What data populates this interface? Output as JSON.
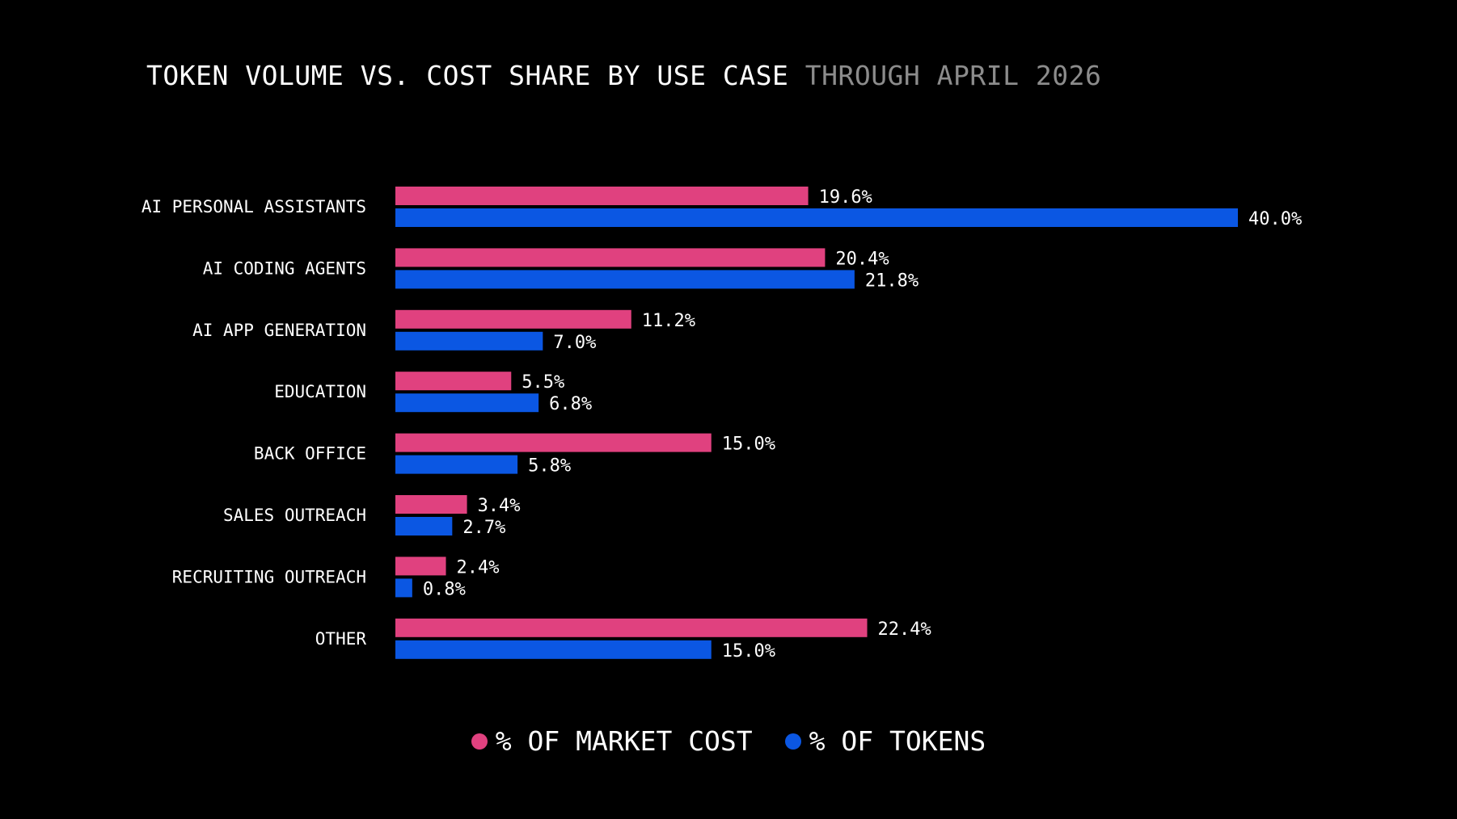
{
  "colors": {
    "background": "#000000",
    "cost": "#e0417f",
    "tokens": "#0b57e3",
    "subtitle": "#8c8c8c"
  },
  "chart_data": {
    "type": "bar",
    "orientation": "horizontal",
    "title": "TOKEN VOLUME VS. COST SHARE BY USE CASE",
    "subtitle": "THROUGH APRIL 2026",
    "categories": [
      "AI PERSONAL ASSISTANTS",
      "AI CODING AGENTS",
      "AI APP GENERATION",
      "EDUCATION",
      "BACK OFFICE",
      "SALES OUTREACH",
      "RECRUITING OUTREACH",
      "OTHER"
    ],
    "series": [
      {
        "name": "% OF MARKET COST",
        "color": "#e0417f",
        "values": [
          19.6,
          20.4,
          11.2,
          5.5,
          15.0,
          3.4,
          2.4,
          22.4
        ],
        "labels": [
          "19.6%",
          "20.4%",
          "11.2%",
          "5.5%",
          "15.0%",
          "3.4%",
          "2.4%",
          "22.4%"
        ]
      },
      {
        "name": "% OF TOKENS",
        "color": "#0b57e3",
        "values": [
          40.0,
          21.8,
          7.0,
          6.8,
          5.8,
          2.7,
          0.8,
          15.0
        ],
        "labels": [
          "40.0%",
          "21.8%",
          "7.0%",
          "6.8%",
          "5.8%",
          "2.7%",
          "0.8%",
          "15.0%"
        ]
      }
    ],
    "xlim": [
      0,
      40
    ],
    "grid": false,
    "axes_visible": false,
    "legend_position": "bottom-center"
  }
}
